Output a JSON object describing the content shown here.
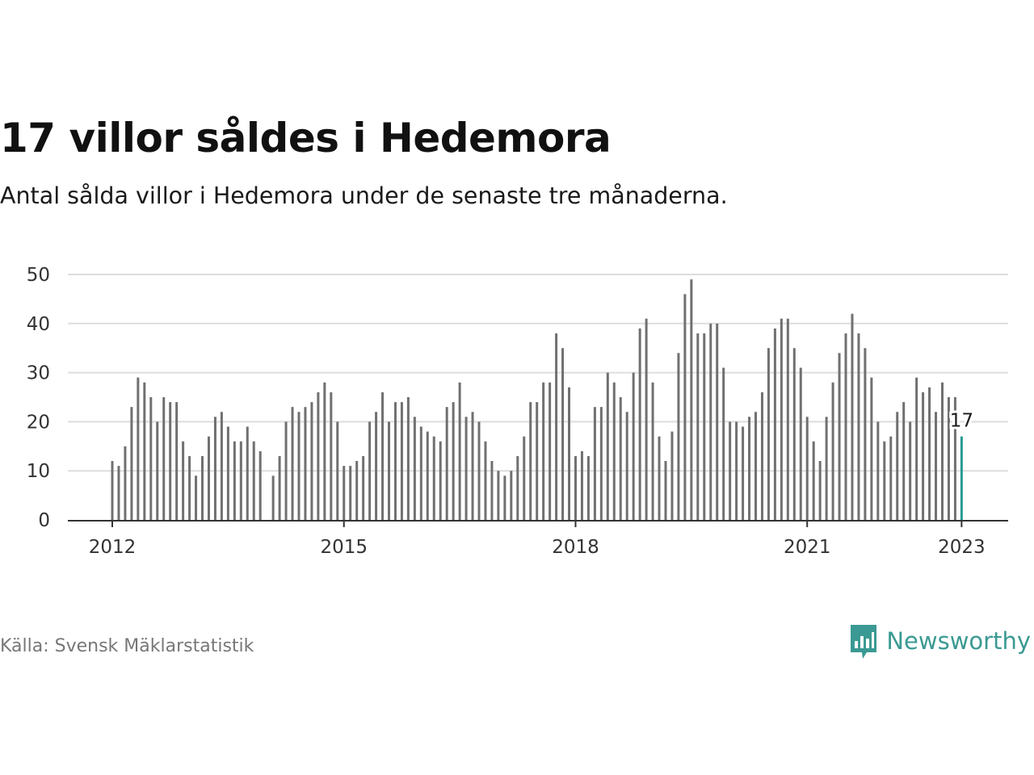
{
  "header": {
    "title": "17 villor såldes i Hedemora",
    "subtitle": "Antal sålda villor i Hedemora under de senaste tre månaderna."
  },
  "footer": {
    "source": "Källa: Svensk Mäklarstatistik",
    "brand": "Newsworthy",
    "brand_icon": "newsworthy-logo-icon"
  },
  "colors": {
    "bar": "#707070",
    "highlight": "#2a9a95",
    "grid": "#dddddd",
    "axis": "#333333",
    "brand": "#3a9a93"
  },
  "chart_data": {
    "type": "bar",
    "title": "17 villor såldes i Hedemora",
    "subtitle": "Antal sålda villor i Hedemora under de senaste tre månaderna.",
    "xlabel": "",
    "ylabel": "",
    "ylim": [
      0,
      50
    ],
    "yticks": [
      0,
      10,
      20,
      30,
      40,
      50
    ],
    "xticks": [
      "2012",
      "2015",
      "2018",
      "2021",
      "2023"
    ],
    "grid": true,
    "start_month": "2012-01",
    "values": [
      12,
      11,
      15,
      23,
      29,
      28,
      25,
      20,
      25,
      24,
      24,
      16,
      13,
      9,
      13,
      17,
      21,
      22,
      19,
      16,
      16,
      19,
      16,
      14,
      null,
      9,
      13,
      20,
      23,
      22,
      23,
      24,
      26,
      28,
      26,
      20,
      11,
      11,
      12,
      13,
      20,
      22,
      26,
      20,
      24,
      24,
      25,
      21,
      19,
      18,
      17,
      16,
      23,
      24,
      28,
      21,
      22,
      20,
      16,
      12,
      10,
      9,
      10,
      13,
      17,
      24,
      24,
      28,
      28,
      38,
      35,
      27,
      13,
      14,
      13,
      23,
      23,
      30,
      28,
      25,
      22,
      30,
      39,
      41,
      28,
      17,
      12,
      18,
      34,
      46,
      49,
      38,
      38,
      40,
      40,
      31,
      20,
      20,
      19,
      21,
      22,
      26,
      35,
      39,
      41,
      41,
      35,
      31,
      21,
      16,
      12,
      21,
      28,
      34,
      38,
      42,
      38,
      35,
      29,
      20,
      16,
      17,
      22,
      24,
      20,
      29,
      26,
      27,
      22,
      28,
      25,
      25,
      17
    ],
    "highlight_last": true,
    "annotation": {
      "label": "17"
    }
  }
}
